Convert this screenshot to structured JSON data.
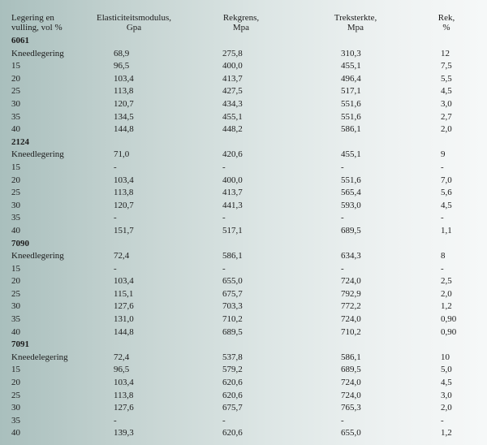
{
  "headers": {
    "col1": [
      "Legering en",
      "vulling, vol %"
    ],
    "col2": [
      "Elasticiteitsmodulus,",
      "Gpa"
    ],
    "col3": [
      "Rekgrens,",
      "Mpa"
    ],
    "col4": [
      "Treksterkte,",
      "Mpa"
    ],
    "col5": [
      "Rek,",
      "%"
    ]
  },
  "rows": [
    {
      "label": "6061",
      "group": true
    },
    {
      "label": "Kneedlegering",
      "v1": "68,9",
      "v2": "275,8",
      "v3": "310,3",
      "v4": "12"
    },
    {
      "label": "15",
      "v1": "96,5",
      "v2": "400,0",
      "v3": "455,1",
      "v4": "7,5"
    },
    {
      "label": "20",
      "v1": "103,4",
      "v2": "413,7",
      "v3": "496,4",
      "v4": "5,5"
    },
    {
      "label": "25",
      "v1": "113,8",
      "v2": "427,5",
      "v3": "517,1",
      "v4": "4,5"
    },
    {
      "label": "30",
      "v1": "120,7",
      "v2": "434,3",
      "v3": "551,6",
      "v4": "3,0"
    },
    {
      "label": "35",
      "v1": "134,5",
      "v2": "455,1",
      "v3": "551,6",
      "v4": "2,7"
    },
    {
      "label": "40",
      "v1": "144,8",
      "v2": "448,2",
      "v3": "586,1",
      "v4": "2,0"
    },
    {
      "label": "2124",
      "group": true
    },
    {
      "label": "Kneedlegering",
      "v1": "71,0",
      "v2": "420,6",
      "v3": "455,1",
      "v4": "9"
    },
    {
      "label": "15",
      "v1": "-",
      "v2": "-",
      "v3": "-",
      "v4": "-"
    },
    {
      "label": "20",
      "v1": "103,4",
      "v2": "400,0",
      "v3": "551,6",
      "v4": "7,0"
    },
    {
      "label": "25",
      "v1": "113,8",
      "v2": "413,7",
      "v3": "565,4",
      "v4": "5,6"
    },
    {
      "label": "30",
      "v1": "120,7",
      "v2": "441,3",
      "v3": "593,0",
      "v4": "4,5"
    },
    {
      "label": "35",
      "v1": "-",
      "v2": "-",
      "v3": "-",
      "v4": "-"
    },
    {
      "label": "40",
      "v1": "151,7",
      "v2": "517,1",
      "v3": "689,5",
      "v4": "1,1"
    },
    {
      "label": "7090",
      "group": true
    },
    {
      "label": "Kneedlegering",
      "v1": "72,4",
      "v2": "586,1",
      "v3": "634,3",
      "v4": "8"
    },
    {
      "label": "15",
      "v1": "-",
      "v2": "-",
      "v3": "-",
      "v4": "-"
    },
    {
      "label": "20",
      "v1": "103,4",
      "v2": "655,0",
      "v3": "724,0",
      "v4": "2,5"
    },
    {
      "label": "25",
      "v1": "115,1",
      "v2": "675,7",
      "v3": "792,9",
      "v4": "2,0"
    },
    {
      "label": "30",
      "v1": "127,6",
      "v2": "703,3",
      "v3": "772,2",
      "v4": "1,2"
    },
    {
      "label": "35",
      "v1": "131,0",
      "v2": "710,2",
      "v3": "724,0",
      "v4": "0,90"
    },
    {
      "label": "40",
      "v1": "144,8",
      "v2": "689,5",
      "v3": "710,2",
      "v4": "0,90"
    },
    {
      "label": "7091",
      "group": true
    },
    {
      "label": "Kneedelegering",
      "v1": "72,4",
      "v2": "537,8",
      "v3": "586,1",
      "v4": "10"
    },
    {
      "label": "15",
      "v1": "96,5",
      "v2": "579,2",
      "v3": "689,5",
      "v4": "5,0"
    },
    {
      "label": "20",
      "v1": "103,4",
      "v2": "620,6",
      "v3": "724,0",
      "v4": "4,5"
    },
    {
      "label": "25",
      "v1": "113,8",
      "v2": "620,6",
      "v3": "724,0",
      "v4": "3,0"
    },
    {
      "label": "30",
      "v1": "127,6",
      "v2": "675,7",
      "v3": "765,3",
      "v4": "2,0"
    },
    {
      "label": "35",
      "v1": "-",
      "v2": "-",
      "v3": "-",
      "v4": "-"
    },
    {
      "label": "40",
      "v1": "139,3",
      "v2": "620,6",
      "v3": "655,0",
      "v4": "1,2"
    }
  ]
}
